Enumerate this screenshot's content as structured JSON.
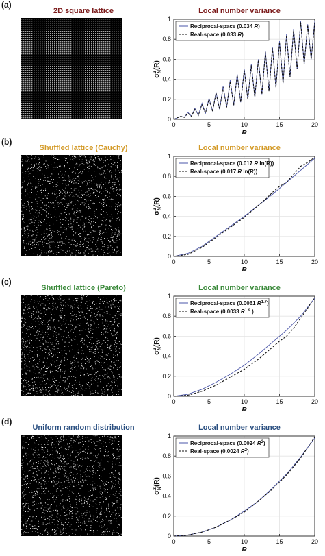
{
  "panels": [
    {
      "label": "(a)",
      "left_title": "2D square lattice",
      "left_title_color": "#7b1a1a",
      "right_title": "Local number variance",
      "right_title_color": "#7b1a1a",
      "point_pattern": "lattice",
      "legend": [
        {
          "prefix": "Reciprocal-space (0.034 ",
          "var": "R",
          "sup": "",
          "suffix": ")"
        },
        {
          "prefix": "Real-space (0.033 ",
          "var": "R",
          "sup": "",
          "suffix": ")"
        }
      ]
    },
    {
      "label": "(b)",
      "left_title": "Shuffled lattice (Cauchy)",
      "left_title_color": "#d39a28",
      "right_title": "Local number variance",
      "right_title_color": "#d39a28",
      "point_pattern": "random",
      "legend": [
        {
          "prefix": "Reciprocal-space (0.017 ",
          "var": "R",
          "sup": "",
          "suffix": " ln(R))"
        },
        {
          "prefix": "Real-space (0.017 ",
          "var": "R",
          "sup": "",
          "suffix": " ln(R))"
        }
      ]
    },
    {
      "label": "(c)",
      "left_title": "Shuffled lattice (Pareto)",
      "left_title_color": "#3b8a3b",
      "right_title": "Local number variance",
      "right_title_color": "#3b8a3b",
      "point_pattern": "random",
      "legend": [
        {
          "prefix": "Reciprocal-space (0.0061 ",
          "var": "R",
          "sup": "1.7",
          "suffix": ")"
        },
        {
          "prefix": "Real-space (0.0033 ",
          "var": "R",
          "sup": "1.9",
          "suffix": " )"
        }
      ]
    },
    {
      "label": "(d)",
      "left_title": "Uniform random distribution",
      "left_title_color": "#2a4f80",
      "right_title": "Local number variance",
      "right_title_color": "#2a4f80",
      "point_pattern": "random",
      "legend": [
        {
          "prefix": "Reciprocal-space (0.0024 ",
          "var": "R",
          "sup": "2",
          "suffix": ")"
        },
        {
          "prefix": "Real-space (0.0024 ",
          "var": "R",
          "sup": "2",
          "suffix": ")"
        }
      ]
    }
  ],
  "chart_data": [
    {
      "type": "line",
      "title": "Local number variance",
      "xlabel": "R",
      "ylabel": "σ²N(R)",
      "xlim": [
        0,
        20
      ],
      "ylim": [
        0,
        1
      ],
      "xticks": [
        0,
        5,
        10,
        15,
        20
      ],
      "yticks": [
        0,
        0.2,
        0.4,
        0.6,
        0.8,
        1
      ],
      "grid": true,
      "legend_position": "top-left",
      "series": [
        {
          "name": "Reciprocal-space (0.034 R)",
          "style": "solid",
          "color": "#4a55a8",
          "x": [
            0,
            1,
            1.5,
            2,
            2.5,
            3,
            3.5,
            4,
            4.5,
            5,
            5.5,
            6,
            6.5,
            7,
            7.5,
            8,
            8.5,
            9,
            9.5,
            10,
            10.5,
            11,
            11.5,
            12,
            12.5,
            13,
            13.5,
            14,
            14.5,
            15,
            15.5,
            16,
            16.5,
            17,
            17.5,
            18,
            18.5,
            19,
            19.5,
            20
          ],
          "y": [
            0,
            0.03,
            0.02,
            0.07,
            0.03,
            0.11,
            0.04,
            0.16,
            0.06,
            0.21,
            0.08,
            0.27,
            0.1,
            0.33,
            0.12,
            0.39,
            0.14,
            0.45,
            0.17,
            0.5,
            0.2,
            0.55,
            0.22,
            0.6,
            0.25,
            0.68,
            0.28,
            0.72,
            0.32,
            0.78,
            0.36,
            0.85,
            0.42,
            0.9,
            0.5,
            0.98,
            0.55,
            0.95,
            0.6,
            0.98
          ]
        },
        {
          "name": "Real-space (0.033 R)",
          "style": "dashed",
          "color": "#111111",
          "x": [
            0,
            1,
            1.5,
            2,
            2.5,
            3,
            3.5,
            4,
            4.5,
            5,
            5.5,
            6,
            6.5,
            7,
            7.5,
            8,
            8.5,
            9,
            9.5,
            10,
            10.5,
            11,
            11.5,
            12,
            12.5,
            13,
            13.5,
            14,
            14.5,
            15,
            15.5,
            16,
            16.5,
            17,
            17.5,
            18,
            18.5,
            19,
            19.5,
            20
          ],
          "y": [
            0,
            0.03,
            0.02,
            0.06,
            0.03,
            0.1,
            0.04,
            0.15,
            0.06,
            0.2,
            0.08,
            0.26,
            0.1,
            0.32,
            0.12,
            0.38,
            0.14,
            0.44,
            0.17,
            0.49,
            0.2,
            0.54,
            0.22,
            0.59,
            0.25,
            0.67,
            0.28,
            0.71,
            0.32,
            0.77,
            0.36,
            0.84,
            0.42,
            0.89,
            0.5,
            0.97,
            0.55,
            0.94,
            0.6,
            0.97
          ]
        }
      ]
    },
    {
      "type": "line",
      "title": "Local number variance",
      "xlabel": "R",
      "ylabel": "σ²N(R)",
      "xlim": [
        0,
        20
      ],
      "ylim": [
        0,
        1
      ],
      "xticks": [
        0,
        5,
        10,
        15,
        20
      ],
      "yticks": [
        0,
        0.2,
        0.4,
        0.6,
        0.8,
        1
      ],
      "grid": true,
      "legend_position": "top-left",
      "series": [
        {
          "name": "Reciprocal-space (0.017 R ln(R))",
          "style": "solid",
          "color": "#4a55a8",
          "x": [
            0,
            2,
            4,
            6,
            8,
            10,
            12,
            14,
            16,
            18,
            20
          ],
          "y": [
            0,
            0.03,
            0.1,
            0.2,
            0.3,
            0.4,
            0.51,
            0.62,
            0.74,
            0.86,
            0.98
          ]
        },
        {
          "name": "Real-space (0.017 R ln(R))",
          "style": "dashed",
          "color": "#111111",
          "x": [
            0,
            2,
            4,
            6,
            8,
            10,
            12,
            13,
            14,
            15,
            16,
            17,
            18,
            19,
            20
          ],
          "y": [
            0,
            0.02,
            0.09,
            0.19,
            0.29,
            0.39,
            0.51,
            0.57,
            0.64,
            0.7,
            0.74,
            0.82,
            0.9,
            0.94,
            0.99
          ]
        }
      ]
    },
    {
      "type": "line",
      "title": "Local number variance",
      "xlabel": "R",
      "ylabel": "σ²N(R)",
      "xlim": [
        0,
        20
      ],
      "ylim": [
        0,
        1
      ],
      "xticks": [
        0,
        5,
        10,
        15,
        20
      ],
      "yticks": [
        0,
        0.2,
        0.4,
        0.6,
        0.8,
        1
      ],
      "grid": true,
      "legend_position": "top-left",
      "series": [
        {
          "name": "Reciprocal-space (0.0061 R^1.7)",
          "style": "solid",
          "color": "#4a55a8",
          "x": [
            0,
            2,
            4,
            6,
            8,
            10,
            12,
            14,
            16,
            18,
            20
          ],
          "y": [
            0,
            0.02,
            0.07,
            0.14,
            0.22,
            0.31,
            0.42,
            0.54,
            0.66,
            0.8,
            0.98
          ]
        },
        {
          "name": "Real-space (0.0033 R^1.9)",
          "style": "dashed",
          "color": "#111111",
          "x": [
            0,
            2,
            4,
            6,
            8,
            10,
            12,
            14,
            15,
            16,
            17,
            18,
            19,
            20
          ],
          "y": [
            0,
            0.01,
            0.05,
            0.11,
            0.19,
            0.27,
            0.37,
            0.49,
            0.55,
            0.6,
            0.68,
            0.78,
            0.88,
            0.99
          ]
        }
      ]
    },
    {
      "type": "line",
      "title": "Local number variance",
      "xlabel": "R",
      "ylabel": "σ²N(R)",
      "xlim": [
        0,
        20
      ],
      "ylim": [
        0,
        1
      ],
      "xticks": [
        0,
        5,
        10,
        15,
        20
      ],
      "yticks": [
        0,
        0.2,
        0.4,
        0.6,
        0.8,
        1
      ],
      "grid": true,
      "legend_position": "top-left",
      "series": [
        {
          "name": "Reciprocal-space (0.0024 R^2)",
          "style": "solid",
          "color": "#4a55a8",
          "x": [
            0,
            2,
            4,
            6,
            8,
            10,
            12,
            14,
            16,
            18,
            20
          ],
          "y": [
            0,
            0.01,
            0.04,
            0.09,
            0.16,
            0.25,
            0.35,
            0.48,
            0.62,
            0.79,
            0.98
          ]
        },
        {
          "name": "Real-space (0.0024 R^2)",
          "style": "dashed",
          "color": "#111111",
          "x": [
            0,
            2,
            4,
            6,
            8,
            10,
            12,
            14,
            16,
            18,
            20
          ],
          "y": [
            0,
            0.01,
            0.04,
            0.09,
            0.16,
            0.24,
            0.35,
            0.47,
            0.61,
            0.78,
            0.99
          ]
        }
      ]
    }
  ]
}
